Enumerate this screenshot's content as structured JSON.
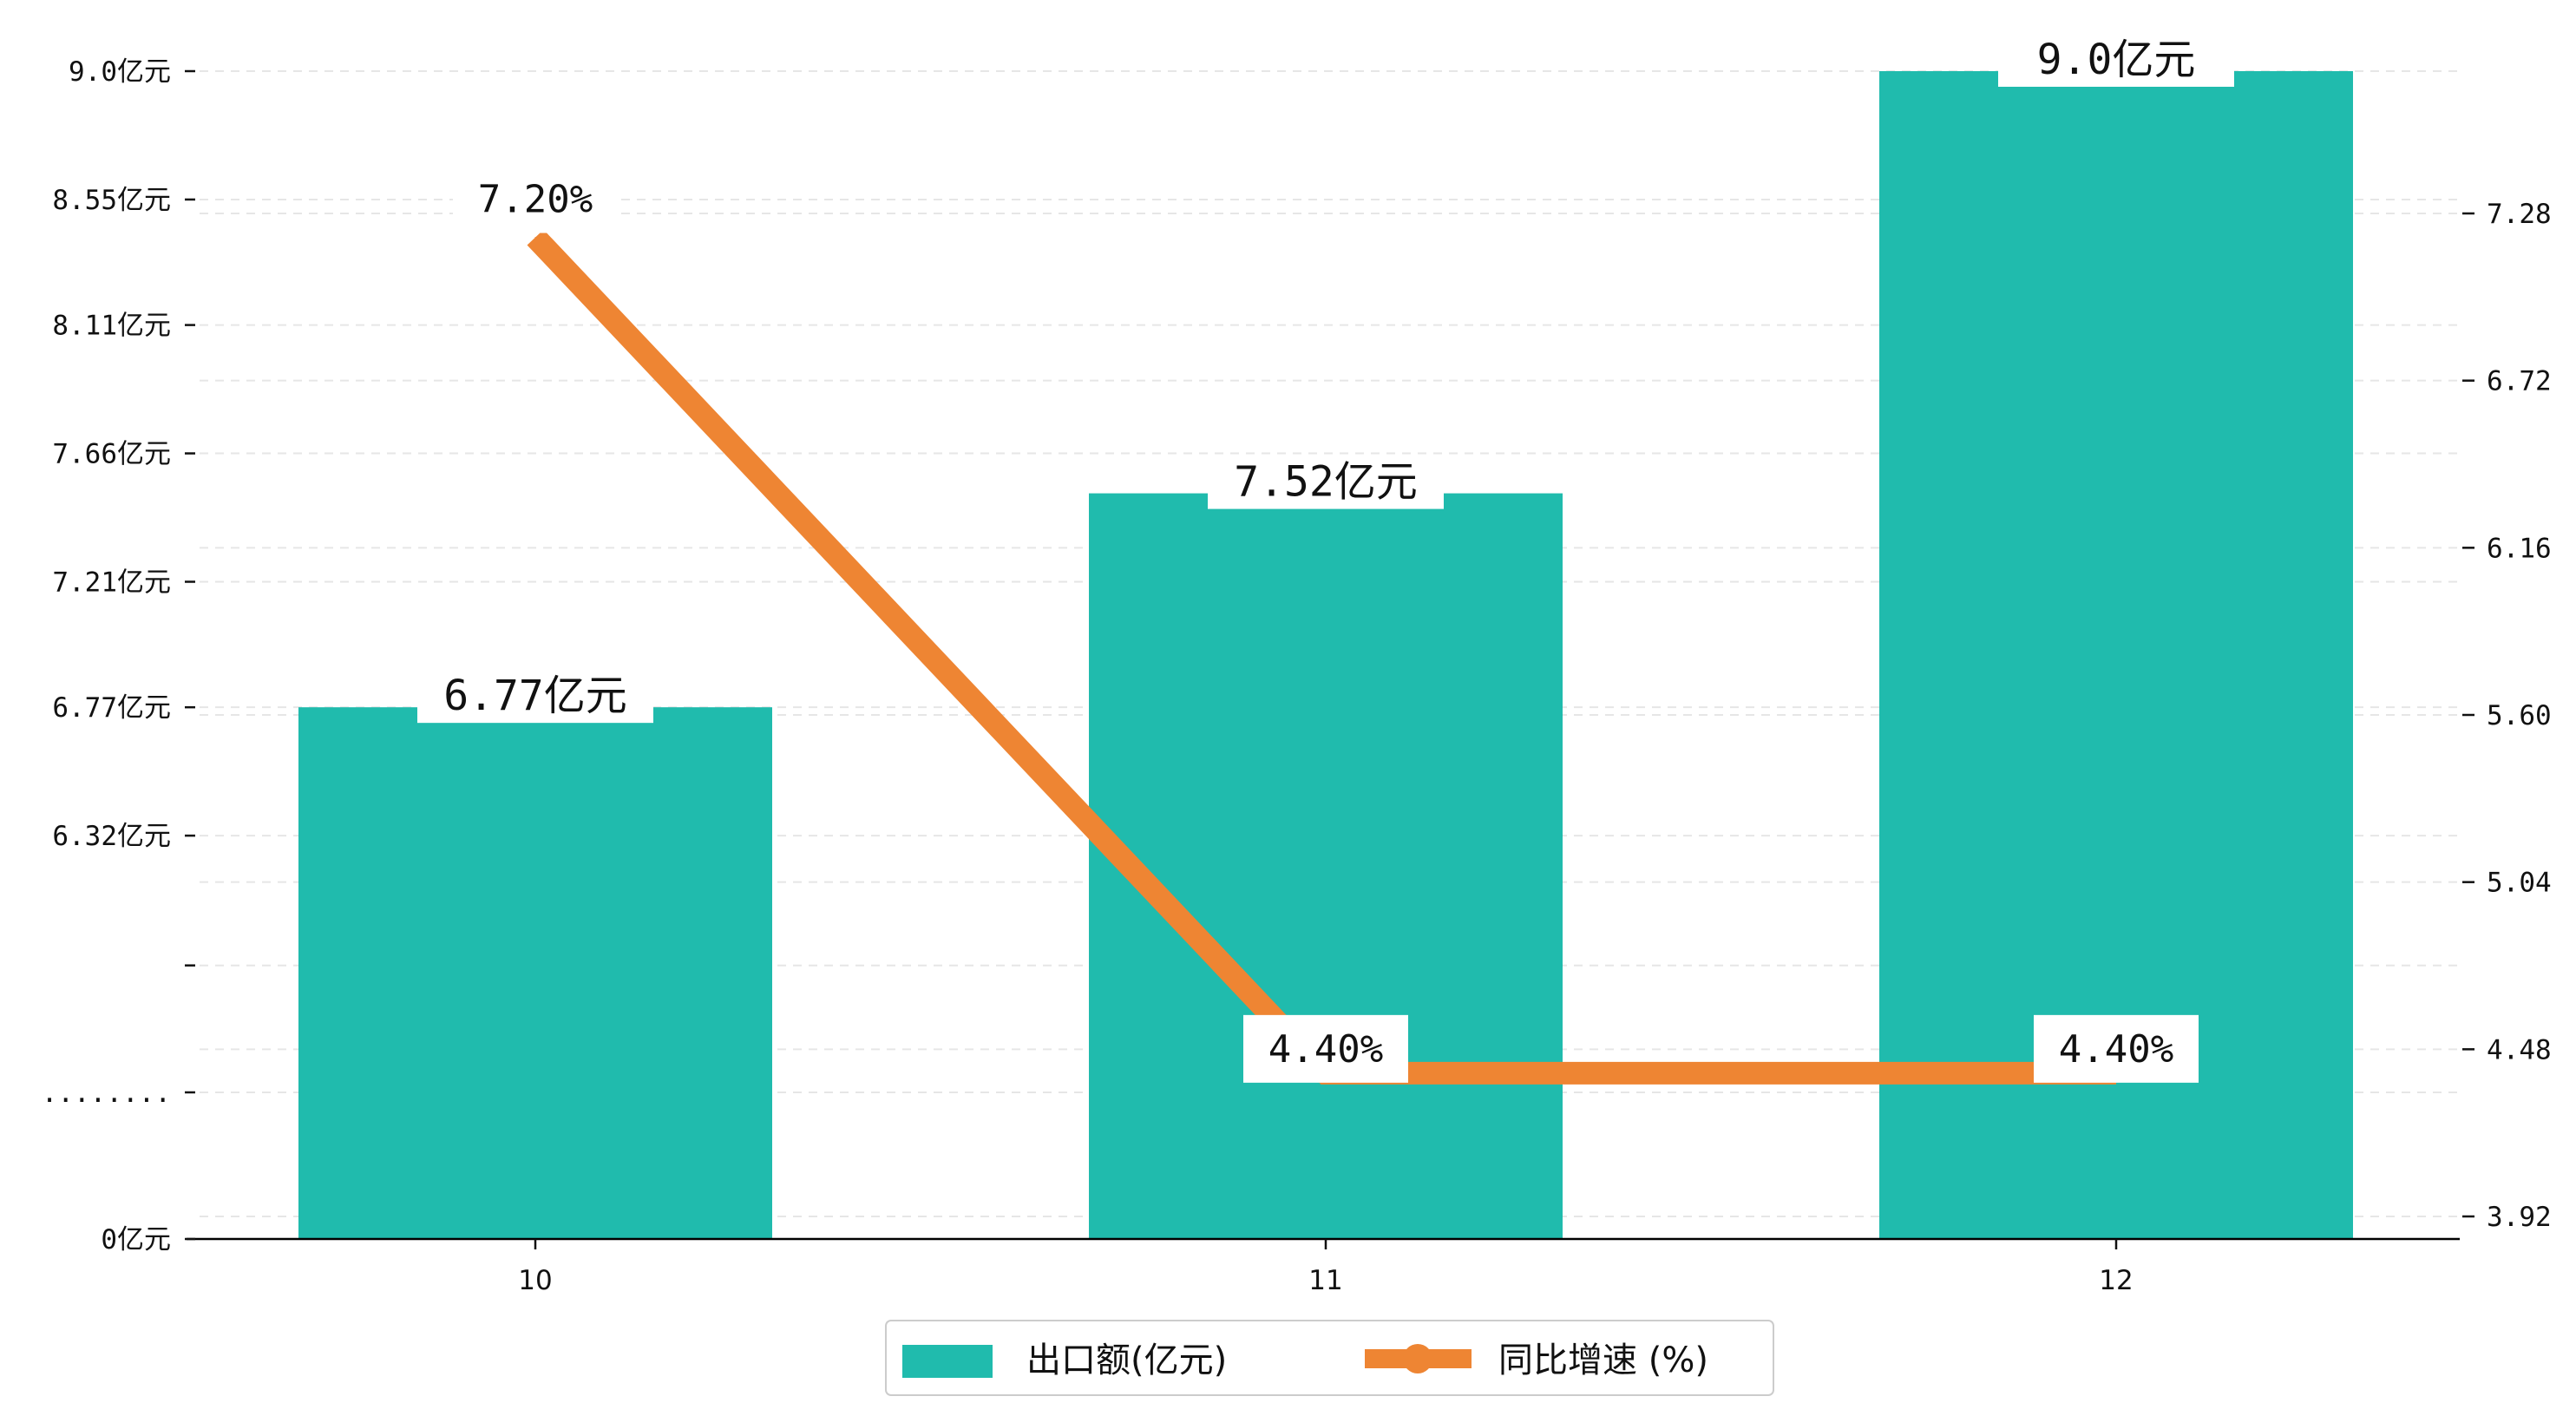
{
  "chart_data": {
    "type": "bar+line",
    "categories": [
      "10",
      "11",
      "12"
    ],
    "series": [
      {
        "name": "出口额(亿元)",
        "type": "bar",
        "axis": "left",
        "color": "#20bbad",
        "values": [
          6.77,
          7.52,
          9.0
        ],
        "labels": [
          "6.77亿元",
          "7.52亿元",
          "9.0亿元"
        ]
      },
      {
        "name": "同比增速 (%)",
        "type": "line",
        "axis": "right",
        "color": "#ee8533",
        "values": [
          7.2,
          4.4,
          4.4
        ],
        "labels": [
          "7.20%",
          "4.40%",
          "4.40%"
        ]
      }
    ],
    "y_left": {
      "ticks": [
        {
          "value": 0,
          "label": "0亿元"
        },
        {
          "value": 5.42,
          "label": "........"
        },
        {
          "value": 5.865,
          "label": ""
        },
        {
          "value": 6.32,
          "label": "6.32亿元"
        },
        {
          "value": 6.77,
          "label": "6.77亿元"
        },
        {
          "value": 7.21,
          "label": "7.21亿元"
        },
        {
          "value": 7.66,
          "label": "7.66亿元"
        },
        {
          "value": 8.11,
          "label": "8.11亿元"
        },
        {
          "value": 8.55,
          "label": "8.55亿元"
        },
        {
          "value": 9.0,
          "label": "9.0亿元"
        }
      ],
      "break_below": 5.42
    },
    "y_right": {
      "ylim": [
        3.92,
        7.8
      ],
      "ticks": [
        "3.92",
        "4.48",
        "5.04",
        "5.60",
        "6.16",
        "6.72",
        "7.28"
      ]
    },
    "legend": {
      "placement": "bottom-center"
    },
    "grid": true
  }
}
